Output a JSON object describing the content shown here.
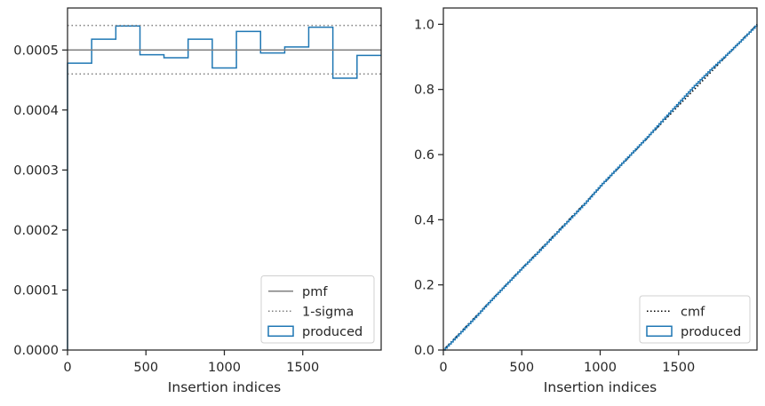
{
  "chart_data": [
    {
      "type": "histogram",
      "xlabel": "Insertion indices",
      "ylabel": "",
      "xlim": [
        0,
        2000
      ],
      "ylim": [
        0,
        0.00057
      ],
      "xticks": [
        0,
        500,
        1000,
        1500
      ],
      "xtick_labels": [
        "0",
        "500",
        "1000",
        "1500"
      ],
      "yticks": [
        0,
        0.0001,
        0.0002,
        0.0003,
        0.0004,
        0.0005
      ],
      "ytick_labels": [
        "0.0000",
        "0.0001",
        "0.0002",
        "0.0003",
        "0.0004",
        "0.0005"
      ],
      "bin_edges": [
        0,
        154,
        308,
        462,
        615,
        769,
        923,
        1077,
        1231,
        1385,
        1538,
        1692,
        1846,
        2000
      ],
      "series": [
        {
          "name": "produced",
          "style": "step",
          "color": "#1f77b4",
          "values": [
            0.000478,
            0.000518,
            0.00054,
            0.000492,
            0.000487,
            0.000518,
            0.00047,
            0.000531,
            0.000495,
            0.000505,
            0.000538,
            0.000453,
            0.000491
          ]
        },
        {
          "name": "pmf",
          "style": "hline",
          "color": "#808080",
          "value": 0.0005
        },
        {
          "name": "1-sigma",
          "style": "dotted-hline",
          "color": "#808080",
          "values": [
            0.00046,
            0.000541
          ]
        }
      ],
      "legend": {
        "position": "lower-right",
        "entries": [
          {
            "label": "pmf",
            "style": "line",
            "color": "#808080"
          },
          {
            "label": "1-sigma",
            "style": "dotted",
            "color": "#808080"
          },
          {
            "label": "produced",
            "style": "patch",
            "color": "#1f77b4"
          }
        ]
      },
      "grid": false
    },
    {
      "type": "line",
      "xlabel": "Insertion indices",
      "ylabel": "",
      "xlim": [
        0,
        2000
      ],
      "ylim": [
        0,
        1.05
      ],
      "xticks": [
        0,
        500,
        1000,
        1500
      ],
      "xtick_labels": [
        "0",
        "500",
        "1000",
        "1500"
      ],
      "yticks": [
        0,
        0.2,
        0.4,
        0.6,
        0.8,
        1.0
      ],
      "ytick_labels": [
        "0.0",
        "0.2",
        "0.4",
        "0.6",
        "0.8",
        "1.0"
      ],
      "series": [
        {
          "name": "cmf",
          "style": "dotted",
          "color": "#000000",
          "x": [
            0,
            2000
          ],
          "y": [
            0,
            1.0
          ]
        },
        {
          "name": "produced",
          "style": "step",
          "color": "#1f77b4",
          "x": [
            0,
            100,
            200,
            300,
            400,
            500,
            600,
            700,
            800,
            900,
            1000,
            1100,
            1200,
            1300,
            1400,
            1500,
            1600,
            1700,
            1800,
            1900,
            2000
          ],
          "y": [
            0,
            0.05,
            0.1,
            0.152,
            0.202,
            0.252,
            0.3,
            0.35,
            0.4,
            0.45,
            0.505,
            0.555,
            0.605,
            0.655,
            0.708,
            0.76,
            0.812,
            0.86,
            0.905,
            0.952,
            1.0
          ]
        }
      ],
      "legend": {
        "position": "lower-right",
        "entries": [
          {
            "label": "cmf",
            "style": "dotted",
            "color": "#000000"
          },
          {
            "label": "produced",
            "style": "patch",
            "color": "#1f77b4"
          }
        ]
      },
      "grid": false
    }
  ]
}
